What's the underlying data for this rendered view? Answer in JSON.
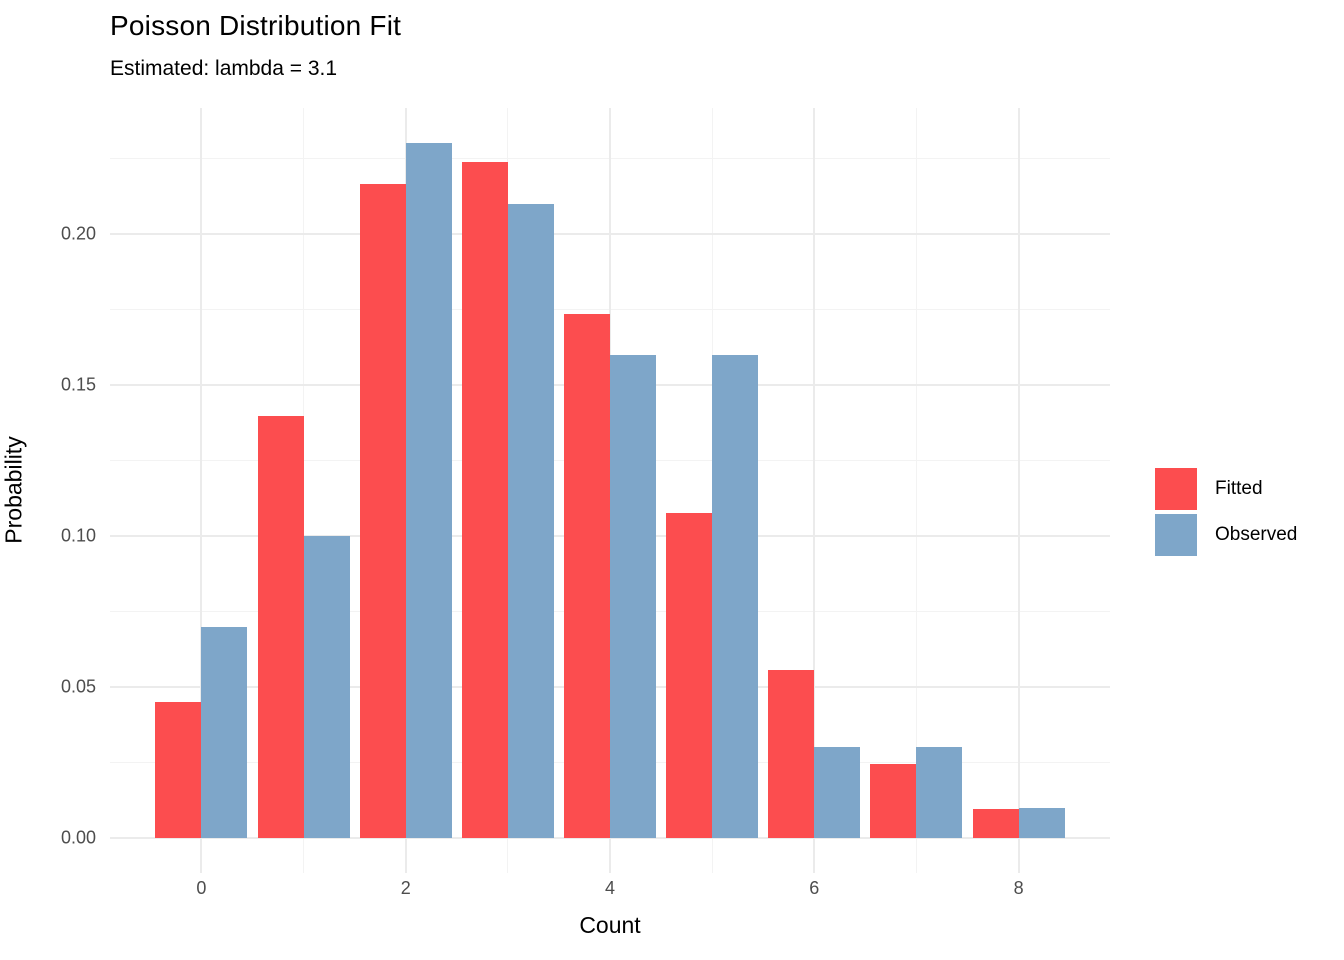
{
  "title": "Poisson Distribution Fit",
  "subtitle": "Estimated: lambda = 3.1",
  "chart_data": {
    "type": "bar",
    "title": "Poisson Distribution Fit",
    "subtitle": "Estimated: lambda = 3.1",
    "xlabel": "Count",
    "ylabel": "Probability",
    "categories": [
      0,
      1,
      2,
      3,
      4,
      5,
      6,
      7,
      8
    ],
    "series": [
      {
        "name": "Fitted",
        "color": "#FC4D4F",
        "values": [
          0.045,
          0.1397,
          0.2165,
          0.2237,
          0.1734,
          0.1075,
          0.0555,
          0.0246,
          0.0095
        ]
      },
      {
        "name": "Observed",
        "color": "#7EA6C9",
        "values": [
          0.07,
          0.1,
          0.23,
          0.21,
          0.16,
          0.16,
          0.03,
          0.03,
          0.01
        ]
      }
    ],
    "x_major_ticks": [
      0,
      2,
      4,
      6,
      8
    ],
    "x_tick_labels": [
      "0",
      "2",
      "4",
      "6",
      "8"
    ],
    "x_minor_ticks": [
      1,
      3,
      5,
      7
    ],
    "y_major_ticks": [
      0,
      0.05,
      0.1,
      0.15,
      0.2
    ],
    "y_tick_labels": [
      "0.00",
      "0.05",
      "0.10",
      "0.15",
      "0.20"
    ],
    "y_minor_ticks": [
      0.025,
      0.075,
      0.125,
      0.175,
      0.225
    ],
    "xlim": [
      -0.895,
      8.895
    ],
    "ylim": [
      -0.0116,
      0.2417
    ],
    "bar_half_width": 0.45,
    "grid": true,
    "legend_position": "right"
  },
  "legend": {
    "items": [
      {
        "label": "Fitted",
        "color": "#FC4D4F"
      },
      {
        "label": "Observed",
        "color": "#7EA6C9"
      }
    ]
  }
}
